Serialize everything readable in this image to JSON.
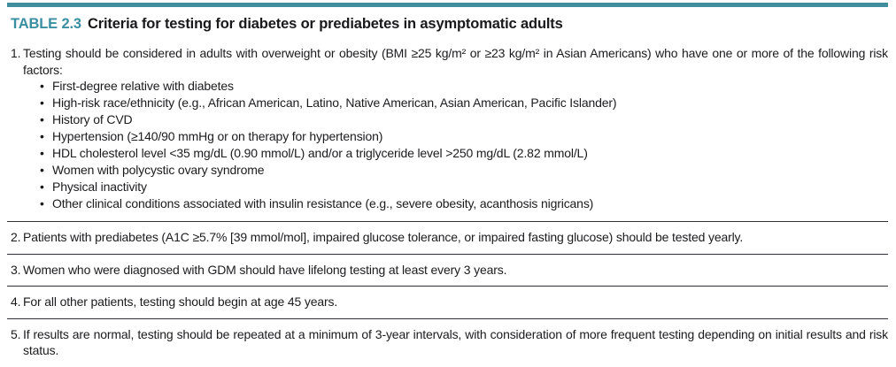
{
  "table": {
    "label": "TABLE 2.3",
    "title": "Criteria for testing for diabetes or prediabetes in asymptomatic adults",
    "accent_color": "#3f8e9d",
    "label_color": "#3a8ea2",
    "divider_color": "#2e2f38",
    "text_color": "#1b1b1e",
    "rows": [
      {
        "number": "1.",
        "text": "Testing should be considered in adults with overweight or obesity (BMI ≥25 kg/m² or ≥23 kg/m² in Asian Americans) who have one or more of the following risk factors:",
        "bullets": [
          "First-degree relative with diabetes",
          "High-risk race/ethnicity (e.g., African American, Latino, Native American, Asian American, Pacific Islander)",
          "History of CVD",
          "Hypertension (≥140/90 mmHg or on therapy for hypertension)",
          "HDL cholesterol level <35 mg/dL (0.90 mmol/L) and/or a triglyceride level >250 mg/dL (2.82 mmol/L)",
          "Women with polycystic ovary syndrome",
          "Physical inactivity",
          "Other clinical conditions associated with insulin resistance (e.g., severe obesity, acanthosis nigricans)"
        ]
      },
      {
        "number": "2.",
        "text": "Patients with prediabetes (A1C ≥5.7% [39 mmol/mol], impaired glucose tolerance, or impaired fasting glucose) should be tested yearly."
      },
      {
        "number": "3.",
        "text": "Women who were diagnosed with GDM should have lifelong testing at least every 3 years."
      },
      {
        "number": "4.",
        "text": "For all other patients, testing should begin at age 45 years."
      },
      {
        "number": "5.",
        "text": "If results are normal, testing should be repeated at a minimum of 3-year intervals, with consideration of more frequent testing depending on initial results and risk status."
      }
    ]
  }
}
